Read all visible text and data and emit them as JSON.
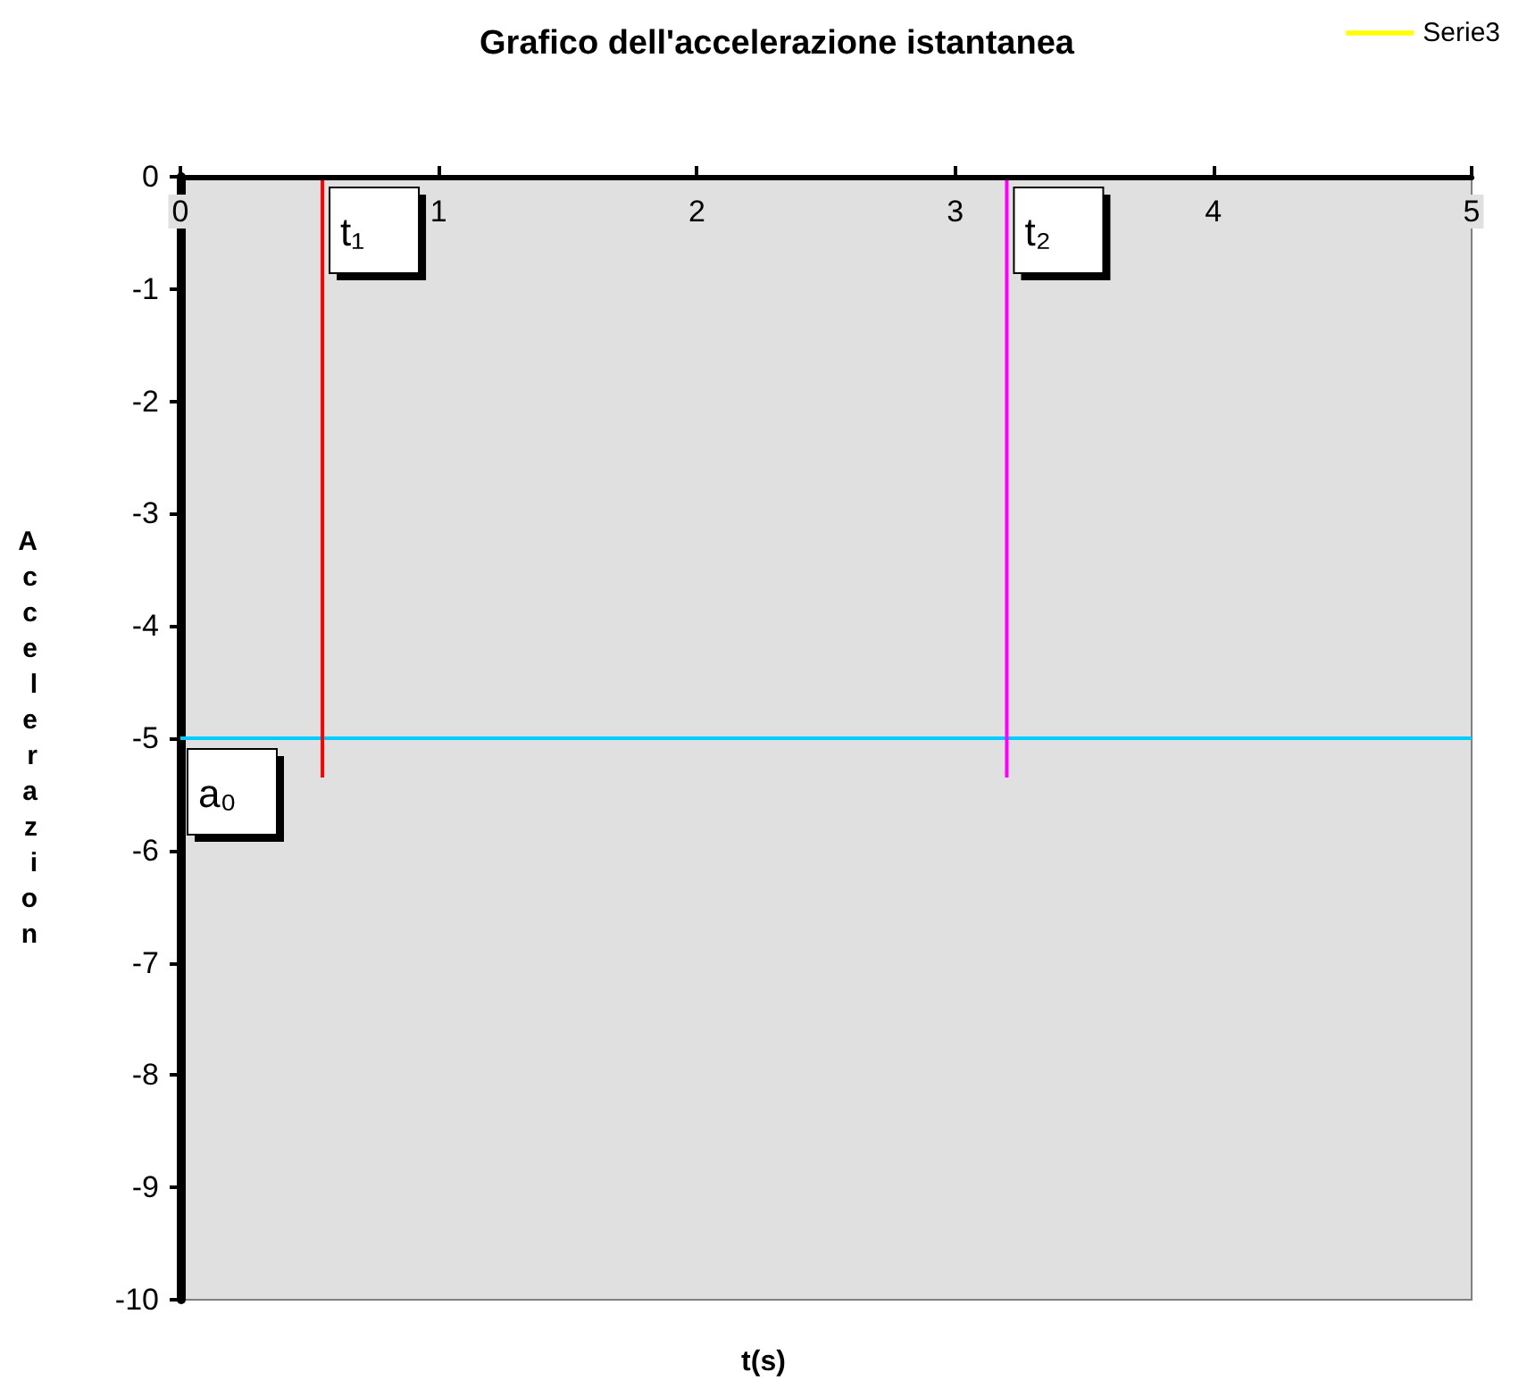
{
  "chart_data": {
    "type": "line",
    "title": "Grafico dell'accelerazione istantanea",
    "xlabel": "t(s)",
    "ylabel": "Accelerazion",
    "xlim": [
      0,
      5
    ],
    "xticks": [
      0,
      1,
      2,
      3,
      4,
      5
    ],
    "ylim": [
      -10,
      0
    ],
    "yticks": [
      -10,
      -9,
      -8,
      -7,
      -6,
      -5,
      -4,
      -3,
      -2,
      -1,
      0
    ],
    "series": [
      {
        "color": "#00ccff",
        "x": [
          0,
          5
        ],
        "values": [
          -5,
          -5
        ]
      },
      {
        "color": "#ff0000",
        "x": [
          0.55,
          0.55
        ],
        "values": [
          0,
          -5.35
        ]
      },
      {
        "color": "#ff00ff",
        "x": [
          3.2,
          3.2
        ],
        "values": [
          0,
          -5.35
        ]
      },
      {
        "name": "Serie3",
        "color": "#ffff00"
      }
    ],
    "annotations": [
      {
        "text": "t₁",
        "x": 0.55,
        "y": 0
      },
      {
        "text": "t₂",
        "x": 3.2,
        "y": 0
      },
      {
        "text": "a₀",
        "x": 0,
        "y": -5
      }
    ],
    "legend": "top right",
    "grid": false,
    "marker": "none"
  }
}
